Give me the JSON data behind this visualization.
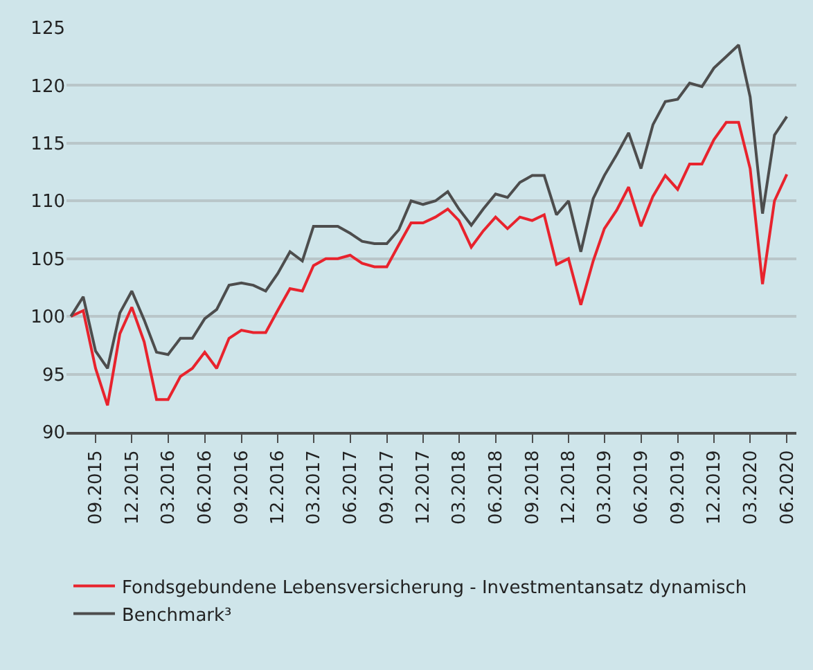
{
  "chart_data": {
    "type": "line",
    "x": [
      "2015-07",
      "2015-08",
      "2015-09",
      "2015-10",
      "2015-11",
      "2015-12",
      "2016-01",
      "2016-02",
      "2016-03",
      "2016-04",
      "2016-05",
      "2016-06",
      "2016-07",
      "2016-08",
      "2016-09",
      "2016-10",
      "2016-11",
      "2016-12",
      "2017-01",
      "2017-02",
      "2017-03",
      "2017-04",
      "2017-05",
      "2017-06",
      "2017-07",
      "2017-08",
      "2017-09",
      "2017-10",
      "2017-11",
      "2017-12",
      "2018-01",
      "2018-02",
      "2018-03",
      "2018-04",
      "2018-05",
      "2018-06",
      "2018-07",
      "2018-08",
      "2018-09",
      "2018-10",
      "2018-11",
      "2018-12",
      "2019-01",
      "2019-02",
      "2019-03",
      "2019-04",
      "2019-05",
      "2019-06",
      "2019-07",
      "2019-08",
      "2019-09",
      "2019-10",
      "2019-11",
      "2019-12",
      "2020-01",
      "2020-02",
      "2020-03",
      "2020-04",
      "2020-05",
      "2020-06"
    ],
    "series": [
      {
        "name": "Fondsgebundene Lebensversicherung - Investmentansatz dynamisch",
        "color": "#e8232d",
        "values": [
          100,
          100.5,
          95.5,
          92.3,
          98.5,
          100.8,
          97.8,
          92.8,
          92.8,
          94.8,
          95.5,
          96.9,
          95.5,
          98.1,
          98.8,
          98.6,
          98.6,
          100.5,
          102.4,
          102.2,
          104.4,
          105,
          105,
          105.3,
          104.6,
          104.3,
          104.3,
          106.2,
          108.1,
          108.1,
          108.6,
          109.3,
          108.3,
          106.0,
          107.4,
          108.6,
          107.6,
          108.6,
          108.3,
          108.8,
          104.5,
          105.0,
          101.0,
          104.8,
          107.6,
          109.2,
          111.2,
          107.8,
          110.4,
          112.2,
          111.0,
          113.2,
          113.2,
          115.3,
          116.8,
          116.8,
          112.8,
          102.8,
          110,
          112.3
        ]
      },
      {
        "name": "Benchmark³",
        "color": "#4d4d4d",
        "values": [
          100,
          101.7,
          97,
          95.5,
          100.3,
          102.2,
          99.7,
          96.9,
          96.7,
          98.1,
          98.1,
          99.8,
          100.6,
          102.7,
          102.9,
          102.7,
          102.2,
          103.7,
          105.6,
          104.8,
          107.8,
          107.8,
          107.8,
          107.2,
          106.5,
          106.3,
          106.3,
          107.5,
          110,
          109.7,
          110,
          110.8,
          109.3,
          107.9,
          109.3,
          110.6,
          110.3,
          111.6,
          112.2,
          112.2,
          108.8,
          110,
          105.6,
          110.2,
          112.2,
          114,
          115.9,
          112.8,
          116.6,
          118.6,
          118.8,
          120.2,
          119.9,
          121.5,
          122.5,
          123.5,
          119,
          108.9,
          115.7,
          117.3
        ]
      }
    ],
    "xlim": [
      "2015-06-20",
      "2020-06-25"
    ],
    "xticks": [
      {
        "value": "2015-09",
        "label": "09.2015"
      },
      {
        "value": "2015-12",
        "label": "12.2015"
      },
      {
        "value": "2016-03",
        "label": "03.2016"
      },
      {
        "value": "2016-06",
        "label": "06.2016"
      },
      {
        "value": "2016-09",
        "label": "09.2016"
      },
      {
        "value": "2016-12",
        "label": "12.2016"
      },
      {
        "value": "2017-03",
        "label": "03.2017"
      },
      {
        "value": "2017-06",
        "label": "06.2017"
      },
      {
        "value": "2017-09",
        "label": "09.2017"
      },
      {
        "value": "2017-12",
        "label": "12.2017"
      },
      {
        "value": "2018-03",
        "label": "03.2018"
      },
      {
        "value": "2018-06",
        "label": "06.2018"
      },
      {
        "value": "2018-09",
        "label": "09.2018"
      },
      {
        "value": "2018-12",
        "label": "12.2018"
      },
      {
        "value": "2019-03",
        "label": "03.2019"
      },
      {
        "value": "2019-06",
        "label": "06.2019"
      },
      {
        "value": "2019-09",
        "label": "09.2019"
      },
      {
        "value": "2019-12",
        "label": "12.2019"
      },
      {
        "value": "2020-03",
        "label": "03.2020"
      },
      {
        "value": "2020-06",
        "label": "06.2020"
      }
    ],
    "ylim": [
      90,
      125
    ],
    "yticks": [
      90,
      95,
      100,
      105,
      110,
      115,
      120,
      125
    ],
    "grid": "y",
    "legend": "bottom",
    "line_style": "solid"
  }
}
